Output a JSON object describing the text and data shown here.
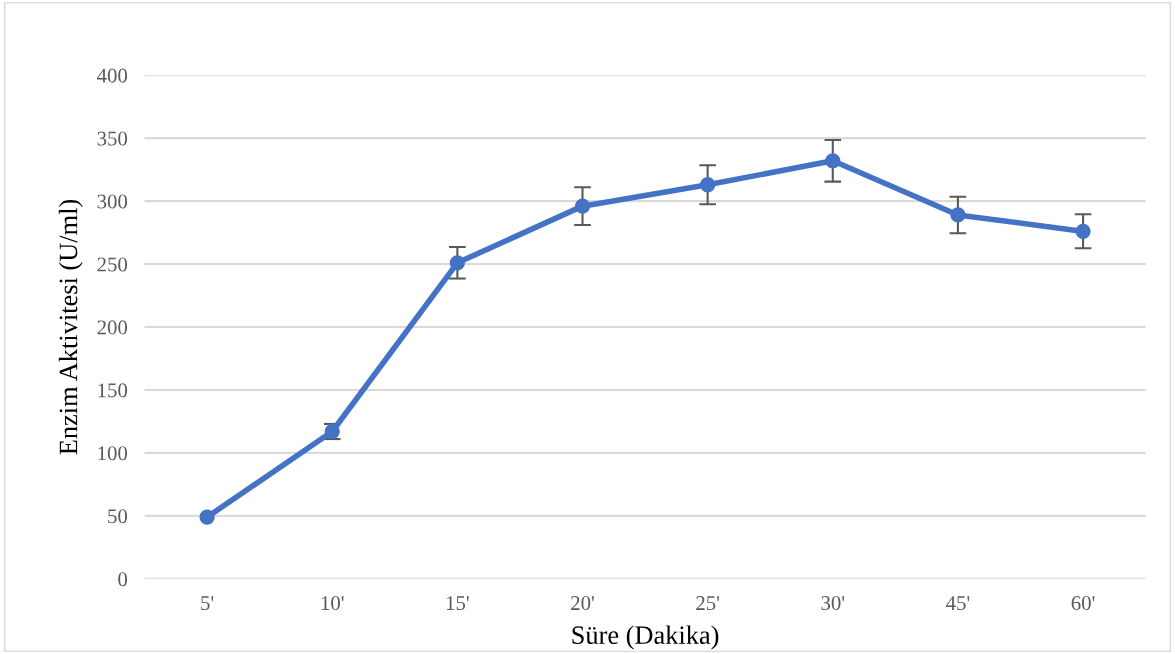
{
  "chart_data": {
    "type": "line",
    "xlabel": "Süre (Dakika)",
    "ylabel": "Enzim Aktivitesi (U/ml)",
    "categories": [
      "5'",
      "10'",
      "15'",
      "20'",
      "25'",
      "30'",
      "45'",
      "60'"
    ],
    "series": [
      {
        "color": "#4472c4",
        "values": [
          49,
          117,
          251,
          296,
          313,
          332,
          289,
          276
        ],
        "errors": [
          null,
          6,
          12.5,
          15,
          15.5,
          16.5,
          14.5,
          13.5
        ]
      }
    ],
    "ylim": [
      0,
      400
    ],
    "yticks": [
      0,
      50,
      100,
      150,
      200,
      250,
      300,
      350,
      400
    ],
    "grid": "y",
    "marker": "circle",
    "line_style": "solid"
  }
}
